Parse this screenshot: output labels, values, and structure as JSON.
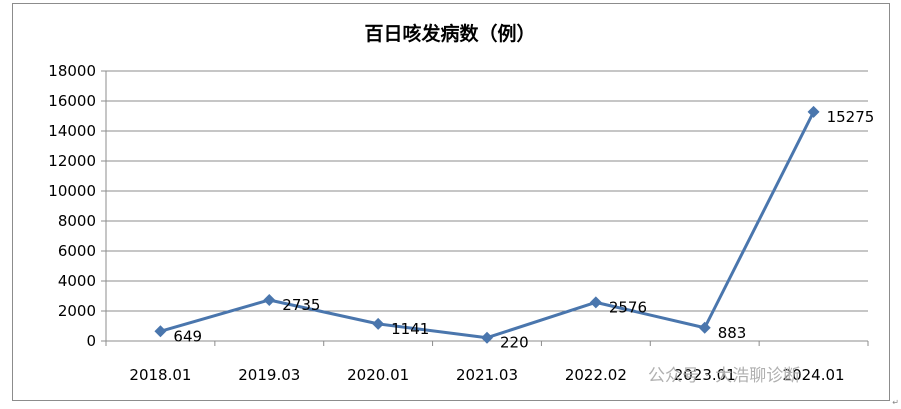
{
  "chart_data": {
    "type": "line",
    "title": "百日咳发病数（例）",
    "categories": [
      "2018.01",
      "2019.03",
      "2020.01",
      "2021.03",
      "2022.02",
      "2023.01",
      "2024.01"
    ],
    "series": [
      {
        "values": [
          649,
          2735,
          1141,
          220,
          2576,
          883,
          15275
        ],
        "color": "#4a76ad"
      }
    ],
    "data_labels": [
      "649",
      "2735",
      "1141",
      "220",
      "2576",
      "883",
      "15275"
    ],
    "ylim": [
      0,
      18000
    ],
    "yticks": [
      "0",
      "2000",
      "4000",
      "6000",
      "8000",
      "10000",
      "12000",
      "14000",
      "16000",
      "18000"
    ],
    "grid": true,
    "legend": "none"
  },
  "watermark": {
    "text": "公众号 · 大浩聊诊断"
  }
}
